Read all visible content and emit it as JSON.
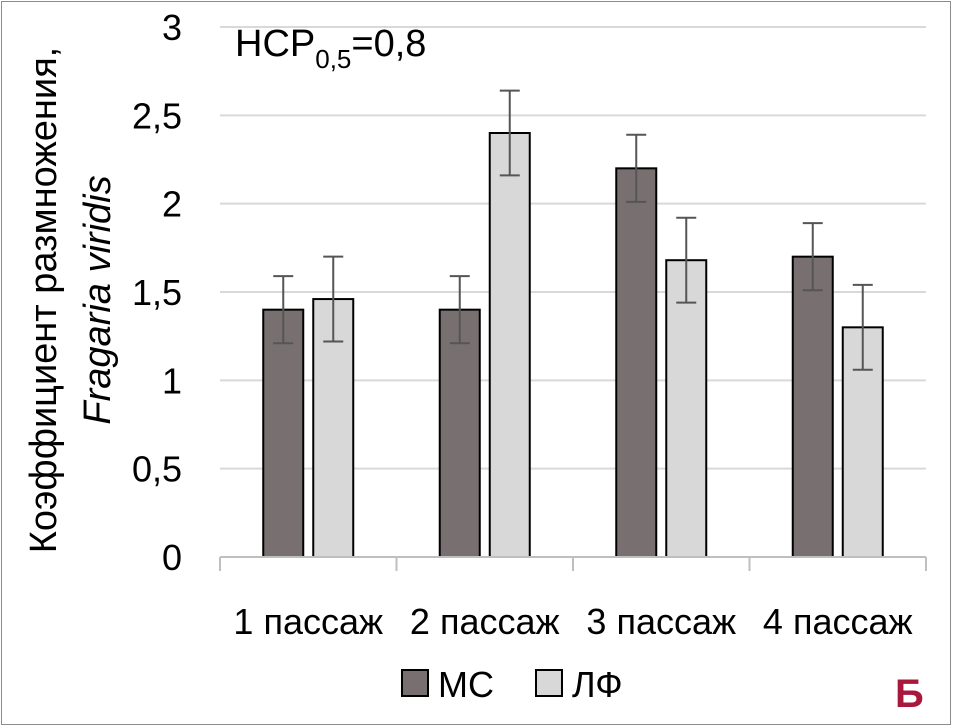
{
  "chart_data": {
    "type": "bar",
    "categories": [
      "1 пассаж",
      "2 пассаж",
      "3 пассаж",
      "4 пассаж"
    ],
    "series": [
      {
        "name": "МС",
        "values": [
          1.4,
          1.4,
          2.2,
          1.7
        ],
        "errors": [
          0.19,
          0.19,
          0.19,
          0.19
        ],
        "color": "#787070"
      },
      {
        "name": "ЛФ",
        "values": [
          1.46,
          2.4,
          1.68,
          1.3
        ],
        "errors": [
          0.24,
          0.24,
          0.24,
          0.24
        ],
        "color": "#d8d8d8"
      }
    ],
    "ylabel_line1": "Коэффициент размножения,",
    "ylabel_line2": "Fragaria viridis",
    "ylim": [
      0,
      3
    ],
    "yticks": [
      0,
      0.5,
      1,
      1.5,
      2,
      2.5,
      3
    ],
    "ytick_labels": [
      "0",
      "0,5",
      "1",
      "1,5",
      "2",
      "2,5",
      "3"
    ],
    "grid": true,
    "legend_position": "bottom",
    "annotation": {
      "prefix": "НСР",
      "subscript": "0,5",
      "suffix": "=0,8"
    },
    "panel_label": "Б",
    "panel_label_color": "#a8183c",
    "gridline_color": "#d9d9d9",
    "errorbar_color": "#555555"
  }
}
